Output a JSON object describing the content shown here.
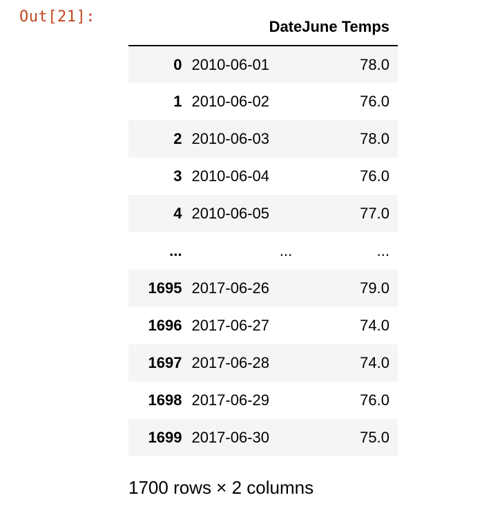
{
  "cell": {
    "prompt_label": "Out[21]:"
  },
  "table": {
    "columns": [
      "",
      "Date",
      "June Temps"
    ],
    "rows": [
      {
        "index": "0",
        "date": "2010-06-01",
        "temp": "78.0"
      },
      {
        "index": "1",
        "date": "2010-06-02",
        "temp": "76.0"
      },
      {
        "index": "2",
        "date": "2010-06-03",
        "temp": "78.0"
      },
      {
        "index": "3",
        "date": "2010-06-04",
        "temp": "76.0"
      },
      {
        "index": "4",
        "date": "2010-06-05",
        "temp": "77.0"
      },
      {
        "index": "...",
        "date": "...",
        "temp": "..."
      },
      {
        "index": "1695",
        "date": "2017-06-26",
        "temp": "79.0"
      },
      {
        "index": "1696",
        "date": "2017-06-27",
        "temp": "74.0"
      },
      {
        "index": "1697",
        "date": "2017-06-28",
        "temp": "74.0"
      },
      {
        "index": "1698",
        "date": "2017-06-29",
        "temp": "76.0"
      },
      {
        "index": "1699",
        "date": "2017-06-30",
        "temp": "75.0"
      }
    ],
    "shape_caption": "1700 rows × 2 columns"
  }
}
